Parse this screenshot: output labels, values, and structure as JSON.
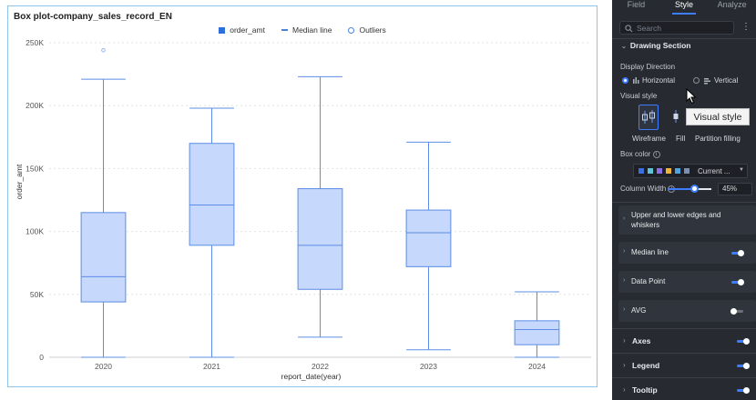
{
  "chart": {
    "title": "Box plot-company_sales_record_EN",
    "legend": [
      "order_amt",
      "Median line",
      "Outliers"
    ],
    "xlabel": "report_date(year)",
    "ylabel": "order_amt"
  },
  "chart_data": {
    "type": "box",
    "categories": [
      "2020",
      "2021",
      "2022",
      "2023",
      "2024"
    ],
    "boxes": [
      {
        "min": 0,
        "q1": 44000,
        "median": 64000,
        "q3": 115000,
        "max": 221000,
        "outliers": [
          244000
        ]
      },
      {
        "min": 0,
        "q1": 89000,
        "median": 121000,
        "q3": 170000,
        "max": 198000,
        "outliers": []
      },
      {
        "min": 16000,
        "q1": 54000,
        "median": 89000,
        "q3": 134000,
        "max": 223000,
        "outliers": []
      },
      {
        "min": 6000,
        "q1": 72000,
        "median": 99000,
        "q3": 117000,
        "max": 171000,
        "outliers": []
      },
      {
        "min": 0,
        "q1": 10000,
        "median": 22000,
        "q3": 29000,
        "max": 52000,
        "outliers": []
      }
    ],
    "yticks": [
      "0",
      "50K",
      "100K",
      "150K",
      "200K",
      "250K"
    ],
    "ylim": [
      0,
      250000
    ],
    "grid": true,
    "legend_position": "top-center",
    "colors": {
      "box_fill": "#c6d8fb",
      "box_stroke": "#5b8de6"
    }
  },
  "sidebar": {
    "tabs": [
      "Field",
      "Style",
      "Analyze"
    ],
    "active_tab": "Style",
    "search_placeholder": "Search",
    "section_title": "Drawing Section",
    "display_direction_label": "Display Direction",
    "direction_options": [
      "Horizontal",
      "Vertical"
    ],
    "direction_selected": "Horizontal",
    "visual_style_label": "Visual style",
    "visual_styles": [
      "Wireframe",
      "Fill",
      "Partition filling"
    ],
    "visual_style_selected": "Wireframe",
    "tooltip_text": "Visual style",
    "box_color_label": "Box color",
    "box_color_value": "Current ...",
    "palette": [
      "#3b6fe0",
      "#5fc3d8",
      "#8b6fe8",
      "#f0b43b",
      "#4fa3e0",
      "#7b8fb0"
    ],
    "column_width_label": "Column Width",
    "column_width_value": "45%",
    "column_width_fraction": 0.45,
    "groups": [
      {
        "label": "Upper and lower edges and whiskers",
        "label2": "whiskers",
        "toggle": null
      },
      {
        "label": "Median line",
        "toggle": true
      },
      {
        "label": "Data Point",
        "toggle": true
      },
      {
        "label": "AVG",
        "toggle": false
      }
    ],
    "sections": [
      {
        "label": "Axes",
        "toggle": true
      },
      {
        "label": "Legend",
        "toggle": true
      },
      {
        "label": "Tooltip",
        "toggle": true
      }
    ]
  }
}
